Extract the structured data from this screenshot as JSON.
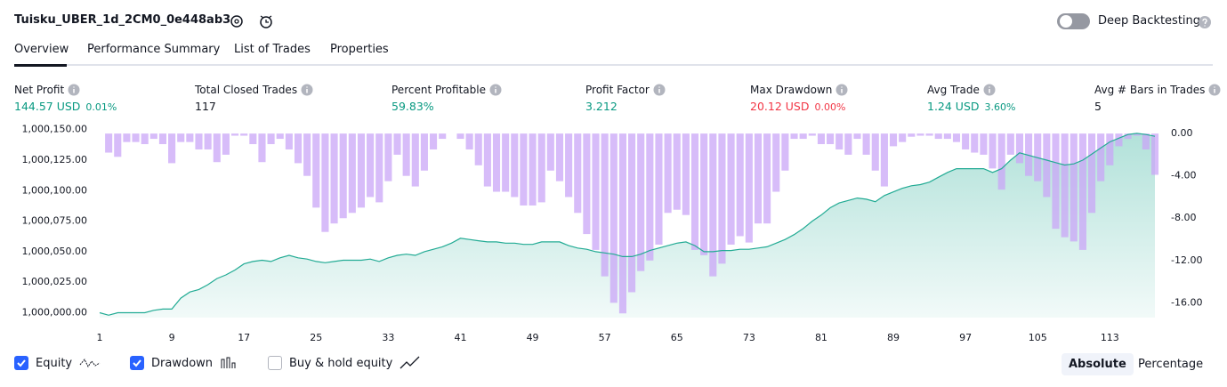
{
  "header": {
    "title": "Tuisku_UBER_1d_2CM0_0e448ab3",
    "toggle_label": "Deep Backtesting"
  },
  "tabs": [
    "Overview",
    "Performance Summary",
    "List of Trades",
    "Properties"
  ],
  "metrics": [
    {
      "label": "Net Profit",
      "value": "144.57 USD",
      "extra": "0.01%",
      "color": "#089981"
    },
    {
      "label": "Total Closed Trades",
      "value": "117",
      "color": "#131722"
    },
    {
      "label": "Percent Profitable",
      "value": "59.83%",
      "color": "#089981"
    },
    {
      "label": "Profit Factor",
      "value": "3.212",
      "color": "#089981"
    },
    {
      "label": "Max Drawdown",
      "value": "20.12 USD",
      "extra": "0.00%",
      "color": "#f23645"
    },
    {
      "label": "Avg Trade",
      "value": "1.24 USD",
      "extra": "3.60%",
      "color": "#089981"
    },
    {
      "label": "Avg # Bars in Trades",
      "value": "5",
      "color": "#131722"
    }
  ],
  "chart_data": {
    "type": "line",
    "x": [
      1,
      2,
      3,
      4,
      5,
      6,
      7,
      8,
      9,
      10,
      11,
      12,
      13,
      14,
      15,
      16,
      17,
      18,
      19,
      20,
      21,
      22,
      23,
      24,
      25,
      26,
      27,
      28,
      29,
      30,
      31,
      32,
      33,
      34,
      35,
      36,
      37,
      38,
      39,
      40,
      41,
      42,
      43,
      44,
      45,
      46,
      47,
      48,
      49,
      50,
      51,
      52,
      53,
      54,
      55,
      56,
      57,
      58,
      59,
      60,
      61,
      62,
      63,
      64,
      65,
      66,
      67,
      68,
      69,
      70,
      71,
      72,
      73,
      74,
      75,
      76,
      77,
      78,
      79,
      80,
      81,
      82,
      83,
      84,
      85,
      86,
      87,
      88,
      89,
      90,
      91,
      92,
      93,
      94,
      95,
      96,
      97,
      98,
      99,
      100,
      101,
      102,
      103,
      104,
      105,
      106,
      107,
      108,
      109,
      110,
      111,
      112,
      113,
      114,
      115,
      116,
      117,
      118
    ],
    "series": [
      {
        "name": "Equity",
        "color": "#22ab94",
        "values": [
          1000000,
          999998,
          1000000,
          1000000,
          1000000,
          1000000,
          1000002,
          1000003,
          1000003,
          1000012,
          1000017,
          1000019,
          1000023,
          1000028,
          1000031,
          1000035,
          1000040,
          1000042,
          1000043,
          1000042,
          1000045,
          1000047,
          1000045,
          1000044,
          1000042,
          1000041,
          1000042,
          1000043,
          1000043,
          1000043,
          1000044,
          1000042,
          1000045,
          1000047,
          1000048,
          1000047,
          1000050,
          1000052,
          1000054,
          1000057,
          1000061,
          1000060,
          1000059,
          1000058,
          1000058,
          1000057,
          1000057,
          1000056,
          1000056,
          1000058,
          1000058,
          1000058,
          1000055,
          1000053,
          1000052,
          1000050,
          1000049,
          1000048,
          1000046,
          1000046,
          1000048,
          1000051,
          1000053,
          1000055,
          1000057,
          1000058,
          1000055,
          1000050,
          1000050,
          1000051,
          1000051,
          1000052,
          1000052,
          1000053,
          1000054,
          1000057,
          1000060,
          1000064,
          1000069,
          1000075,
          1000080,
          1000086,
          1000090,
          1000092,
          1000094,
          1000093,
          1000091,
          1000096,
          1000099,
          1000102,
          1000104,
          1000105,
          1000107,
          1000111,
          1000115,
          1000118,
          1000118,
          1000118,
          1000118,
          1000115,
          1000118,
          1000125,
          1000131,
          1000129,
          1000127,
          1000125,
          1000123,
          1000121,
          1000122,
          1000125,
          1000130,
          1000135,
          1000140,
          1000143,
          1000146,
          1000147,
          1000146,
          1000144.57
        ]
      },
      {
        "name": "Drawdown",
        "color": "#c9a6f7",
        "axis": "y2",
        "values": [
          0,
          -1.8,
          -2.2,
          -0.8,
          -0.8,
          -1,
          -0.5,
          -1,
          -2.8,
          -0.8,
          -0.8,
          -1.5,
          -1.5,
          -2.7,
          -2,
          -0.2,
          -0.2,
          -1,
          -2.7,
          -1,
          -0.5,
          -1.5,
          -2.8,
          -4,
          -7,
          -9.3,
          -8.5,
          -8,
          -7.5,
          -7,
          -6,
          -6.5,
          -4.5,
          -2,
          -4,
          -5,
          -3.5,
          -1.5,
          -0.5,
          0,
          -0.5,
          -1.5,
          -3,
          -5,
          -5.5,
          -5.5,
          -6,
          -6.8,
          -6.8,
          -6.5,
          -3.5,
          -4.5,
          -6,
          -7.5,
          -9.5,
          -11,
          -13.5,
          -16,
          -17,
          -15,
          -13,
          -12,
          -10.5,
          -7.5,
          -7.2,
          -7.7,
          -11,
          -11.5,
          -13.5,
          -12.3,
          -10.5,
          -9.7,
          -10.3,
          -8.5,
          -8.5,
          -5.5,
          -3.5,
          -0.5,
          -0.5,
          -0.2,
          -1,
          -1,
          -1.5,
          -2,
          -0.5,
          -2,
          -3.5,
          -5,
          -1.2,
          -0.8,
          -0.3,
          -0.2,
          -0.2,
          -0.5,
          -0.5,
          -0.8,
          -1.5,
          -1.8,
          -2,
          -3.3,
          -5.3,
          -2,
          -2.8,
          -4,
          -4.5,
          -6,
          -9,
          -9.8,
          -10.2,
          -11,
          -7.5,
          -4.5,
          -3,
          -1.2,
          -0.5,
          -0.2,
          -1.5,
          -3.9
        ]
      }
    ],
    "xlim": [
      1,
      118
    ],
    "xticks": [
      1,
      9,
      17,
      25,
      33,
      41,
      49,
      57,
      65,
      73,
      81,
      89,
      97,
      105,
      113
    ],
    "ylim": [
      999996,
      1000152
    ],
    "yticks": [
      {
        "value": 1000000,
        "label": "1,000,000.00"
      },
      {
        "value": 1000025,
        "label": "1,000,025.00"
      },
      {
        "value": 1000050,
        "label": "1,000,050.00"
      },
      {
        "value": 1000075,
        "label": "1,000,075.00"
      },
      {
        "value": 1000100,
        "label": "1,000,100.00"
      },
      {
        "value": 1000125,
        "label": "1,000,125.00"
      },
      {
        "value": 1000150,
        "label": "1,000,150.00"
      }
    ],
    "y2lim": [
      -17.4,
      0.6
    ],
    "y2ticks": [
      {
        "value": 0,
        "label": "0.00"
      },
      {
        "value": -4,
        "label": "-4.00"
      },
      {
        "value": -8,
        "label": "-8.00"
      },
      {
        "value": -12,
        "label": "-12.00"
      },
      {
        "value": -16,
        "label": "-16.00"
      }
    ]
  },
  "legend": [
    "Equity",
    "Drawdown",
    "Buy & hold equity"
  ],
  "buttons": [
    "Absolute",
    "Percentage"
  ]
}
